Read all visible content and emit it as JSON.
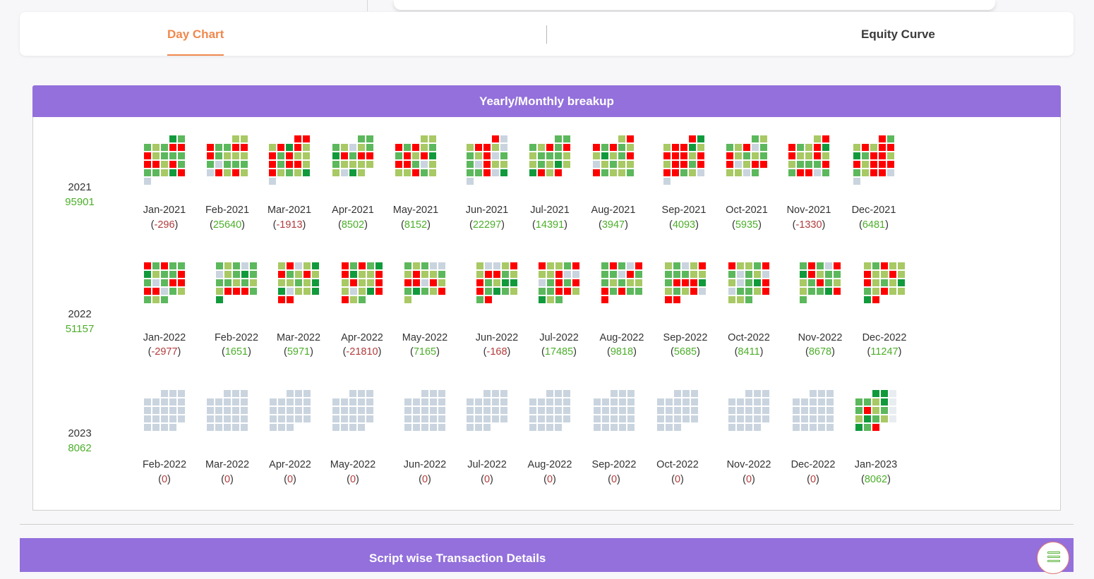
{
  "tabs": [
    {
      "label": "Day Chart",
      "active": true
    },
    {
      "label": "Equity Curve",
      "active": false
    }
  ],
  "panel": {
    "title": "Yearly/Monthly breakup"
  },
  "bottom_panel": {
    "title": "Script wise Transaction Details",
    "menu_icon": "list-icon"
  },
  "colors": {
    "accent": "#9370db",
    "active_tab": "#f0884d",
    "positive_text": "#4cae2a",
    "negative_text": "#b23b3b",
    "strong_profit": "#119a3c",
    "profit": "#5cb85c",
    "small_profit": "#a8c964",
    "loss": "#ff0000",
    "no_trade": "#c9d4df",
    "future": "#e8edf2"
  },
  "years": [
    {
      "year": "2021",
      "total": "95901",
      "months": [
        {
          "label": "Jan-2021",
          "value": "-296",
          "sign": "neg"
        },
        {
          "label": "Feb-2021",
          "value": "25640",
          "sign": "pos"
        },
        {
          "label": "Mar-2021",
          "value": "-1913",
          "sign": "neg"
        },
        {
          "label": "Apr-2021",
          "value": "8502",
          "sign": "pos"
        },
        {
          "label": "May-2021",
          "value": "8152",
          "sign": "pos"
        },
        {
          "label": "Jun-2021",
          "value": "22297",
          "sign": "pos"
        },
        {
          "label": "Jul-2021",
          "value": "14391",
          "sign": "pos"
        },
        {
          "label": "Aug-2021",
          "value": "3947",
          "sign": "pos"
        },
        {
          "label": "Sep-2021",
          "value": "4093",
          "sign": "pos"
        },
        {
          "label": "Oct-2021",
          "value": "5935",
          "sign": "pos"
        },
        {
          "label": "Nov-2021",
          "value": "-1330",
          "sign": "neg"
        },
        {
          "label": "Dec-2021",
          "value": "6481",
          "sign": "pos"
        }
      ]
    },
    {
      "year": "2022",
      "total": "51157",
      "months": [
        {
          "label": "Jan-2022",
          "value": "-2977",
          "sign": "neg"
        },
        {
          "label": "Feb-2022",
          "value": "1651",
          "sign": "pos"
        },
        {
          "label": "Mar-2022",
          "value": "5971",
          "sign": "pos"
        },
        {
          "label": "Apr-2022",
          "value": "-21810",
          "sign": "neg"
        },
        {
          "label": "May-2022",
          "value": "7165",
          "sign": "pos"
        },
        {
          "label": "Jun-2022",
          "value": "-168",
          "sign": "neg"
        },
        {
          "label": "Jul-2022",
          "value": "17485",
          "sign": "pos"
        },
        {
          "label": "Aug-2022",
          "value": "9818",
          "sign": "pos"
        },
        {
          "label": "Sep-2022",
          "value": "5685",
          "sign": "pos"
        },
        {
          "label": "Oct-2022",
          "value": "8411",
          "sign": "pos"
        },
        {
          "label": "Nov-2022",
          "value": "8678",
          "sign": "pos"
        },
        {
          "label": "Dec-2022",
          "value": "11247",
          "sign": "pos"
        }
      ]
    },
    {
      "year": "2023",
      "total": "8062",
      "months": [
        {
          "label": "Feb-2022",
          "value": "0",
          "sign": "zero"
        },
        {
          "label": "Mar-2022",
          "value": "0",
          "sign": "zero"
        },
        {
          "label": "Apr-2022",
          "value": "0",
          "sign": "zero"
        },
        {
          "label": "May-2022",
          "value": "0",
          "sign": "zero"
        },
        {
          "label": "Jun-2022",
          "value": "0",
          "sign": "zero"
        },
        {
          "label": "Jul-2022",
          "value": "0",
          "sign": "zero"
        },
        {
          "label": "Aug-2022",
          "value": "0",
          "sign": "zero"
        },
        {
          "label": "Sep-2022",
          "value": "0",
          "sign": "zero"
        },
        {
          "label": "Oct-2022",
          "value": "0",
          "sign": "zero"
        },
        {
          "label": "Nov-2022",
          "value": "0",
          "sign": "zero"
        },
        {
          "label": "Dec-2022",
          "value": "0",
          "sign": "zero"
        },
        {
          "label": "Jan-2023",
          "value": "8062",
          "sign": "pos"
        }
      ]
    }
  ]
}
